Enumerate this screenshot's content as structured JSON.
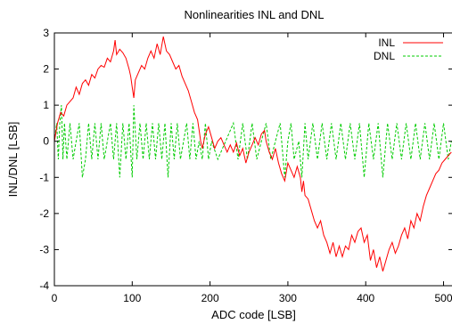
{
  "chart_data": {
    "type": "line",
    "title": "Nonlinearities INL and DNL",
    "xlabel": "ADC code [LSB]",
    "ylabel": "INL/DNL [LSB]",
    "xlim": [
      0,
      512
    ],
    "ylim": [
      -4,
      3
    ],
    "xticks": [
      0,
      100,
      200,
      300,
      400,
      500
    ],
    "yticks": [
      -4,
      -3,
      -2,
      -1,
      0,
      1,
      2,
      3
    ],
    "grid": false,
    "legend_position": "top-right",
    "series": [
      {
        "name": "INL",
        "color": "#ff0000",
        "style": "solid",
        "points": [
          [
            0,
            0.0
          ],
          [
            4,
            0.5
          ],
          [
            8,
            0.8
          ],
          [
            12,
            0.7
          ],
          [
            16,
            1.0
          ],
          [
            20,
            1.1
          ],
          [
            24,
            1.2
          ],
          [
            28,
            1.5
          ],
          [
            32,
            1.3
          ],
          [
            36,
            1.6
          ],
          [
            40,
            1.7
          ],
          [
            44,
            1.55
          ],
          [
            48,
            1.85
          ],
          [
            52,
            1.75
          ],
          [
            56,
            2.0
          ],
          [
            60,
            2.1
          ],
          [
            64,
            2.05
          ],
          [
            68,
            2.3
          ],
          [
            72,
            2.2
          ],
          [
            76,
            2.5
          ],
          [
            78,
            2.8
          ],
          [
            80,
            2.4
          ],
          [
            84,
            2.55
          ],
          [
            88,
            2.45
          ],
          [
            92,
            2.3
          ],
          [
            96,
            2.0
          ],
          [
            98,
            1.8
          ],
          [
            100,
            1.5
          ],
          [
            102,
            1.2
          ],
          [
            104,
            1.7
          ],
          [
            108,
            1.9
          ],
          [
            112,
            2.1
          ],
          [
            116,
            2.0
          ],
          [
            120,
            2.3
          ],
          [
            124,
            2.5
          ],
          [
            128,
            2.3
          ],
          [
            132,
            2.7
          ],
          [
            136,
            2.4
          ],
          [
            140,
            2.9
          ],
          [
            144,
            2.5
          ],
          [
            148,
            2.4
          ],
          [
            152,
            2.2
          ],
          [
            156,
            2.0
          ],
          [
            160,
            2.1
          ],
          [
            164,
            1.8
          ],
          [
            168,
            1.6
          ],
          [
            172,
            1.4
          ],
          [
            176,
            1.1
          ],
          [
            180,
            0.8
          ],
          [
            184,
            0.6
          ],
          [
            186,
            0.3
          ],
          [
            188,
            0.0
          ],
          [
            190,
            -0.2
          ],
          [
            194,
            0.2
          ],
          [
            198,
            0.4
          ],
          [
            202,
            0.1
          ],
          [
            206,
            -0.2
          ],
          [
            210,
            0.0
          ],
          [
            214,
            0.1
          ],
          [
            218,
            -0.1
          ],
          [
            222,
            -0.3
          ],
          [
            226,
            -0.1
          ],
          [
            230,
            -0.3
          ],
          [
            234,
            -0.05
          ],
          [
            238,
            -0.4
          ],
          [
            242,
            -0.2
          ],
          [
            246,
            -0.6
          ],
          [
            250,
            -0.3
          ],
          [
            254,
            -0.1
          ],
          [
            258,
            0.1
          ],
          [
            262,
            -0.1
          ],
          [
            266,
            0.2
          ],
          [
            270,
            0.3
          ],
          [
            272,
            0.0
          ],
          [
            276,
            -0.3
          ],
          [
            280,
            -0.5
          ],
          [
            284,
            -0.2
          ],
          [
            288,
            -0.6
          ],
          [
            292,
            -0.9
          ],
          [
            296,
            -1.1
          ],
          [
            300,
            -0.6
          ],
          [
            304,
            -0.8
          ],
          [
            308,
            -1.0
          ],
          [
            312,
            -0.7
          ],
          [
            316,
            -1.0
          ],
          [
            318,
            -1.4
          ],
          [
            320,
            -1.1
          ],
          [
            322,
            -1.5
          ],
          [
            326,
            -1.6
          ],
          [
            330,
            -1.9
          ],
          [
            334,
            -2.2
          ],
          [
            338,
            -2.4
          ],
          [
            342,
            -2.2
          ],
          [
            346,
            -2.6
          ],
          [
            350,
            -2.8
          ],
          [
            354,
            -3.1
          ],
          [
            358,
            -2.8
          ],
          [
            362,
            -3.2
          ],
          [
            366,
            -2.9
          ],
          [
            370,
            -3.2
          ],
          [
            374,
            -2.9
          ],
          [
            378,
            -3.0
          ],
          [
            382,
            -2.6
          ],
          [
            386,
            -2.8
          ],
          [
            390,
            -2.5
          ],
          [
            394,
            -2.4
          ],
          [
            398,
            -2.8
          ],
          [
            402,
            -2.6
          ],
          [
            406,
            -3.3
          ],
          [
            410,
            -3.0
          ],
          [
            414,
            -3.5
          ],
          [
            418,
            -3.2
          ],
          [
            422,
            -3.6
          ],
          [
            426,
            -3.3
          ],
          [
            430,
            -3.0
          ],
          [
            434,
            -2.8
          ],
          [
            438,
            -3.1
          ],
          [
            442,
            -2.9
          ],
          [
            446,
            -2.6
          ],
          [
            450,
            -2.4
          ],
          [
            454,
            -2.7
          ],
          [
            458,
            -2.2
          ],
          [
            462,
            -2.4
          ],
          [
            466,
            -2.0
          ],
          [
            470,
            -2.2
          ],
          [
            474,
            -1.8
          ],
          [
            478,
            -1.5
          ],
          [
            482,
            -1.3
          ],
          [
            486,
            -1.1
          ],
          [
            490,
            -0.9
          ],
          [
            494,
            -0.8
          ],
          [
            498,
            -0.6
          ],
          [
            502,
            -0.5
          ],
          [
            506,
            -0.4
          ],
          [
            510,
            -0.3
          ]
        ]
      },
      {
        "name": "DNL",
        "color": "#00cc00",
        "style": "dashed",
        "levels": [
          -1,
          -0.5,
          0,
          0.5,
          1
        ],
        "points": [
          [
            0,
            0.0
          ],
          [
            3,
            0.5
          ],
          [
            5,
            -0.5
          ],
          [
            7,
            0.5
          ],
          [
            9,
            1.0
          ],
          [
            11,
            -0.5
          ],
          [
            13,
            0.5
          ],
          [
            16,
            -0.5
          ],
          [
            20,
            0.5
          ],
          [
            24,
            -0.5
          ],
          [
            28,
            0.0
          ],
          [
            32,
            0.5
          ],
          [
            36,
            -1.0
          ],
          [
            40,
            -0.5
          ],
          [
            44,
            0.5
          ],
          [
            48,
            -0.5
          ],
          [
            52,
            0.5
          ],
          [
            56,
            -0.5
          ],
          [
            60,
            0.5
          ],
          [
            64,
            -0.5
          ],
          [
            68,
            0.0
          ],
          [
            72,
            0.5
          ],
          [
            76,
            -0.5
          ],
          [
            80,
            0.5
          ],
          [
            84,
            -1.0
          ],
          [
            88,
            0.5
          ],
          [
            92,
            -0.5
          ],
          [
            96,
            0.5
          ],
          [
            100,
            -1.0
          ],
          [
            102,
            1.0
          ],
          [
            106,
            -0.5
          ],
          [
            110,
            0.5
          ],
          [
            114,
            -0.5
          ],
          [
            118,
            0.5
          ],
          [
            122,
            -0.5
          ],
          [
            126,
            0.5
          ],
          [
            130,
            -0.5
          ],
          [
            134,
            0.5
          ],
          [
            138,
            -0.5
          ],
          [
            142,
            0.5
          ],
          [
            146,
            -1.0
          ],
          [
            150,
            0.5
          ],
          [
            154,
            -0.5
          ],
          [
            158,
            0.5
          ],
          [
            162,
            -0.5
          ],
          [
            166,
            0.0
          ],
          [
            170,
            0.5
          ],
          [
            174,
            -0.5
          ],
          [
            178,
            0.5
          ],
          [
            182,
            -0.5
          ],
          [
            186,
            0.0
          ],
          [
            190,
            -0.5
          ],
          [
            194,
            0.5
          ],
          [
            198,
            -0.5
          ],
          [
            202,
            0.0
          ],
          [
            210,
            -0.5
          ],
          [
            220,
            0.0
          ],
          [
            230,
            0.5
          ],
          [
            236,
            -0.5
          ],
          [
            242,
            0.5
          ],
          [
            248,
            -0.5
          ],
          [
            254,
            0.5
          ],
          [
            260,
            -0.5
          ],
          [
            266,
            0.0
          ],
          [
            272,
            0.5
          ],
          [
            278,
            -0.5
          ],
          [
            284,
            0.0
          ],
          [
            290,
            0.5
          ],
          [
            296,
            -1.0
          ],
          [
            300,
            0.0
          ],
          [
            304,
            0.5
          ],
          [
            308,
            -0.5
          ],
          [
            314,
            0.0
          ],
          [
            318,
            -1.0
          ],
          [
            322,
            0.5
          ],
          [
            326,
            -0.5
          ],
          [
            332,
            0.5
          ],
          [
            338,
            -0.5
          ],
          [
            344,
            0.5
          ],
          [
            350,
            -0.5
          ],
          [
            356,
            0.5
          ],
          [
            362,
            -0.5
          ],
          [
            368,
            0.5
          ],
          [
            374,
            -0.5
          ],
          [
            380,
            0.5
          ],
          [
            386,
            -0.5
          ],
          [
            392,
            0.5
          ],
          [
            398,
            -1.0
          ],
          [
            404,
            0.5
          ],
          [
            410,
            -0.5
          ],
          [
            416,
            0.5
          ],
          [
            422,
            -1.0
          ],
          [
            428,
            0.5
          ],
          [
            434,
            -0.5
          ],
          [
            440,
            0.5
          ],
          [
            446,
            -0.5
          ],
          [
            452,
            0.5
          ],
          [
            458,
            -0.5
          ],
          [
            464,
            0.5
          ],
          [
            470,
            -0.5
          ],
          [
            476,
            0.5
          ],
          [
            482,
            -0.5
          ],
          [
            488,
            0.5
          ],
          [
            494,
            -0.5
          ],
          [
            500,
            0.5
          ],
          [
            506,
            -0.5
          ],
          [
            510,
            0.0
          ]
        ]
      }
    ]
  }
}
